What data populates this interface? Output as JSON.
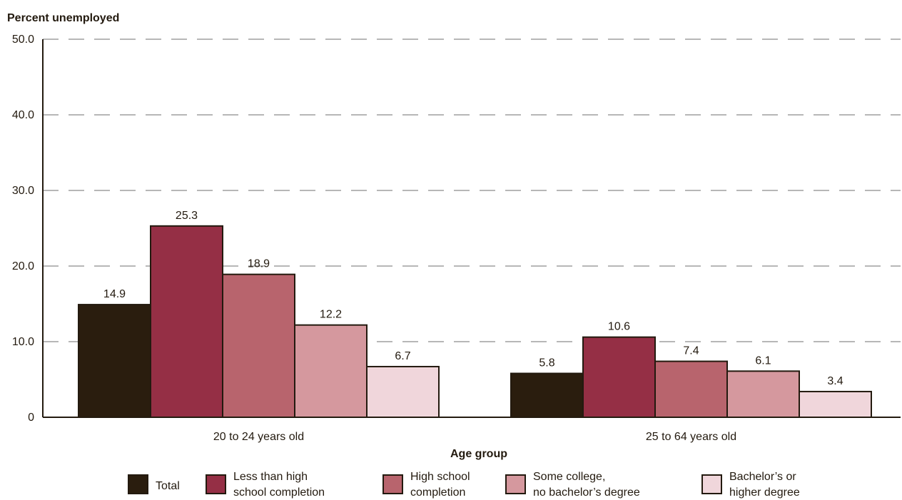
{
  "chart_data": {
    "type": "bar",
    "ylabel": "Percent unemployed",
    "xlabel": "Age group",
    "ylim": [
      0,
      50
    ],
    "yticks": [
      "0",
      "10.0",
      "20.0",
      "30.0",
      "40.0",
      "50.0"
    ],
    "grid": "horizontal dashed",
    "legend_position": "bottom",
    "categories": [
      "20 to 24 years old",
      "25 to 64 years old"
    ],
    "series": [
      {
        "name": "Total",
        "legend_lines": [
          "Total"
        ],
        "color": "#2a1d0e",
        "values": [
          14.9,
          5.8
        ],
        "labels": [
          "14.9",
          "5.8"
        ]
      },
      {
        "name": "Less than high school completion",
        "legend_lines": [
          "Less than high",
          "school completion"
        ],
        "color": "#952f45",
        "values": [
          25.3,
          10.6
        ],
        "labels": [
          "25.3",
          "10.6"
        ]
      },
      {
        "name": "High school completion",
        "legend_lines": [
          "High school",
          "completion"
        ],
        "color": "#b8646d",
        "values": [
          18.9,
          7.4
        ],
        "labels": [
          "18.9",
          "7.4"
        ]
      },
      {
        "name": "Some college, no bachelor’s degree",
        "legend_lines": [
          "Some college,",
          "no bachelor’s degree"
        ],
        "color": "#d5989e",
        "values": [
          12.2,
          6.1
        ],
        "labels": [
          "12.2",
          "6.1"
        ]
      },
      {
        "name": "Bachelor’s or higher degree",
        "legend_lines": [
          "Bachelor’s or",
          "higher degree"
        ],
        "color": "#f0d6db",
        "values": [
          6.7,
          3.4
        ],
        "labels": [
          "6.7",
          "3.4"
        ]
      }
    ],
    "colors": {
      "axis": "#231a0f",
      "grid": "#8c8c8c",
      "outline": "#231a0f"
    }
  }
}
